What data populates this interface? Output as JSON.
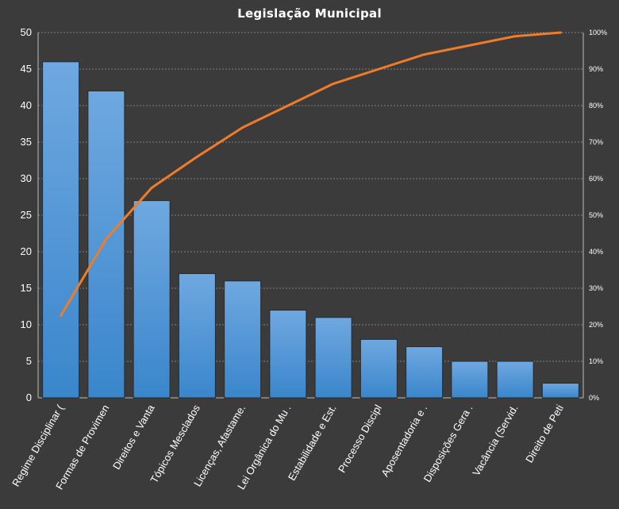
{
  "chart_data": {
    "type": "bar",
    "title": "Legislação  Municipal",
    "categories": [
      "Regime Disciplinar (",
      "Formas de Provimen",
      "Direitos e Vanta",
      "Tópicos Mesclados",
      "Licenças, Afastame.",
      "Lei Orgânica do Mu .",
      "Estabilidade e Est.",
      "Processo Discipl",
      "Aposentadoria e .",
      "Disposições Gera .",
      "Vacância (Servid.",
      "Direito de Peti"
    ],
    "series": [
      {
        "values": [
          46,
          42,
          27,
          17,
          16,
          12,
          11,
          8,
          7,
          5,
          5,
          2
        ],
        "axis": "left",
        "kind": "bar"
      },
      {
        "values": [
          22.5,
          43.5,
          57.5,
          66.0,
          74.0,
          80.0,
          86.0,
          90.0,
          94.0,
          96.5,
          99.0,
          100.0
        ],
        "axis": "right",
        "kind": "line"
      }
    ],
    "ylim": [
      0,
      50
    ],
    "yticks": [
      0,
      5,
      10,
      15,
      20,
      25,
      30,
      35,
      40,
      45,
      50
    ],
    "y2lim": [
      0,
      100
    ],
    "y2ticks": [
      "0%",
      "10%",
      "20%",
      "30%",
      "40%",
      "50%",
      "60%",
      "70%",
      "80%",
      "90%",
      "100%"
    ],
    "grid": true,
    "legend": "none",
    "colors": {
      "background": "#3b3b3b",
      "bar_top": "#6fa8e0",
      "bar_bottom": "#3a86cc",
      "bar_edge": "#2a2a2a",
      "line": "#f07c28",
      "grid": "#9a9a9a",
      "text": "#ffffff"
    }
  }
}
